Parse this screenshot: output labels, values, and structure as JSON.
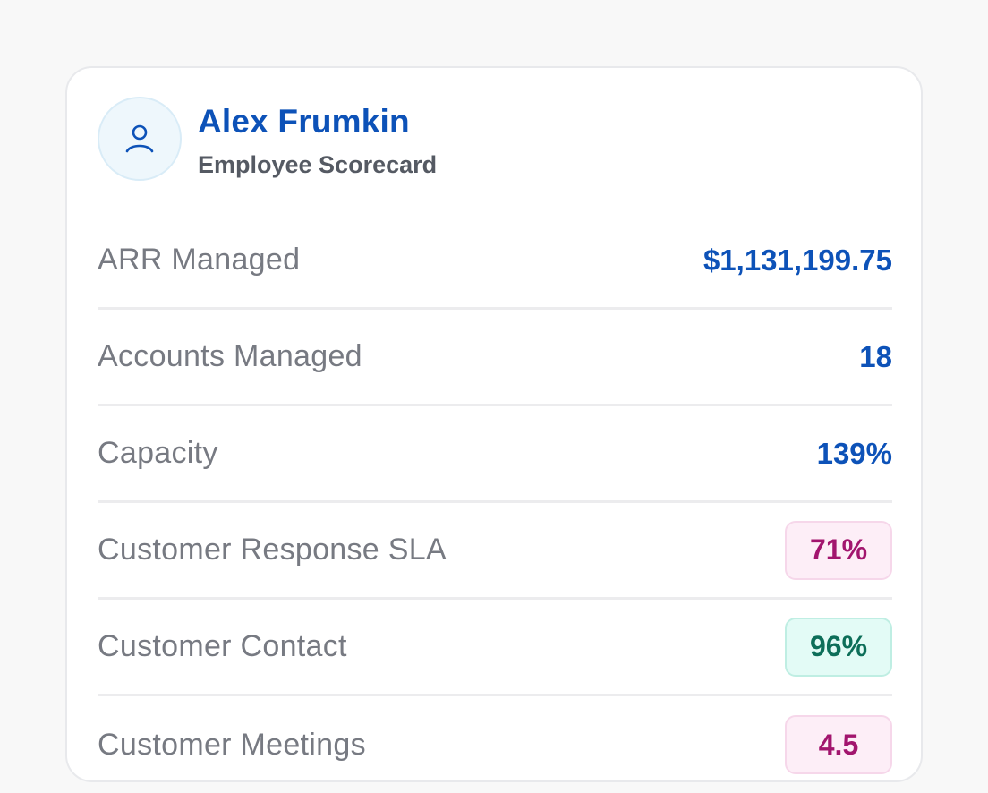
{
  "employee": {
    "name": "Alex Frumkin",
    "subtitle": "Employee Scorecard",
    "avatar_icon": "user-icon"
  },
  "colors": {
    "accent": "#0d52b8",
    "bad_text": "#a2156e",
    "bad_bg": "#fdeef7",
    "good_text": "#0d6e59",
    "good_bg": "#e3fbf6"
  },
  "metrics": [
    {
      "label": "ARR Managed",
      "value": "$1,131,199.75",
      "status": "none"
    },
    {
      "label": "Accounts Managed",
      "value": "18",
      "status": "none"
    },
    {
      "label": "Capacity",
      "value": "139%",
      "status": "none"
    },
    {
      "label": "Customer Response SLA",
      "value": "71%",
      "status": "bad"
    },
    {
      "label": "Customer Contact",
      "value": "96%",
      "status": "good"
    },
    {
      "label": "Customer Meetings",
      "value": "4.5",
      "status": "bad"
    }
  ]
}
